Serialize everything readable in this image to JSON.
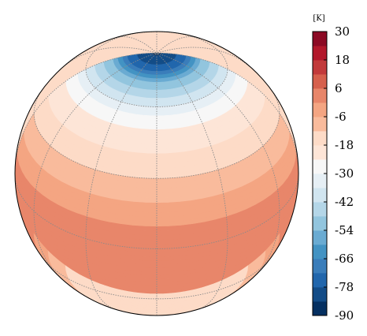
{
  "map": {
    "projection": "orthographic",
    "view_lat_deg": 32,
    "view_lon_deg": 0,
    "graticule_lat_step_deg": 30,
    "graticule_lon_step_deg": 30,
    "graticule_color": "#8a8a8a",
    "outline_color": "#000000"
  },
  "temperature_field": {
    "unit": "K",
    "levels": [
      -90,
      -84,
      -78,
      -72,
      -66,
      -60,
      -54,
      -48,
      -42,
      -36,
      -30,
      -24,
      -18,
      -12,
      -6,
      0,
      6,
      12,
      18,
      24,
      30
    ],
    "approx_profile_by_latitude": [
      {
        "lat_deg": 90,
        "value": -87
      },
      {
        "lat_deg": 80,
        "value": -75
      },
      {
        "lat_deg": 70,
        "value": -50
      },
      {
        "lat_deg": 60,
        "value": -36
      },
      {
        "lat_deg": 50,
        "value": -24
      },
      {
        "lat_deg": 40,
        "value": -18
      },
      {
        "lat_deg": 30,
        "value": -12
      },
      {
        "lat_deg": 20,
        "value": -6
      },
      {
        "lat_deg": 10,
        "value": 0
      },
      {
        "lat_deg": 0,
        "value": 3
      },
      {
        "lat_deg": -10,
        "value": 4
      },
      {
        "lat_deg": -20,
        "value": 3
      },
      {
        "lat_deg": -30,
        "value": 0
      },
      {
        "lat_deg": -40,
        "value": -6
      },
      {
        "lat_deg": -50,
        "value": -12
      },
      {
        "lat_deg": -60,
        "value": -18
      }
    ]
  },
  "colorbar": {
    "unit_label": "[K]",
    "min": -90,
    "max": 30,
    "tick_labels": [
      "30",
      "18",
      "6",
      "-6",
      "-18",
      "-30",
      "-42",
      "-54",
      "-66",
      "-78",
      "-90"
    ],
    "colors": [
      "#053061",
      "#134c87",
      "#2166ac",
      "#3a7dba",
      "#4393c3",
      "#6aabd2",
      "#92c5de",
      "#b4d6e8",
      "#d1e5f0",
      "#e6eff5",
      "#f7f7f7",
      "#fde5d7",
      "#fddbc7",
      "#f9bb9c",
      "#f4a582",
      "#e8866a",
      "#d6604d",
      "#c23a3b",
      "#b2182b",
      "#8c0a24"
    ]
  }
}
